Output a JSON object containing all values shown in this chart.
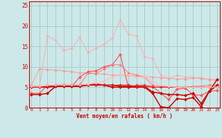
{
  "bg_color": "#cce8e8",
  "grid_color": "#aacccc",
  "xlabel": "Vent moyen/en rafales ( km/h )",
  "xlabel_color": "#cc0000",
  "tick_color": "#cc0000",
  "x": [
    0,
    1,
    2,
    3,
    4,
    5,
    6,
    7,
    8,
    9,
    10,
    11,
    12,
    13,
    14,
    15,
    16,
    17,
    18,
    19,
    20,
    21,
    22,
    23
  ],
  "ylim": [
    0,
    26
  ],
  "yticks": [
    0,
    5,
    10,
    15,
    20,
    25
  ],
  "xlim": [
    -0.3,
    23.3
  ],
  "series": [
    {
      "color": "#ffaaaa",
      "lw": 0.7,
      "marker": "D",
      "ms": 1.8,
      "y": [
        5.3,
        5.2,
        17.5,
        16.5,
        14.0,
        14.5,
        17.2,
        13.5,
        14.5,
        15.5,
        17.0,
        21.5,
        18.0,
        17.5,
        12.5,
        12.0,
        8.0,
        7.0,
        8.0,
        7.5,
        7.5,
        7.0,
        7.0,
        6.8
      ]
    },
    {
      "color": "#ff9999",
      "lw": 0.7,
      "marker": "D",
      "ms": 1.8,
      "y": [
        5.5,
        9.5,
        9.3,
        9.2,
        9.0,
        8.8,
        8.5,
        8.5,
        8.3,
        8.2,
        8.0,
        8.0,
        7.8,
        7.8,
        7.5,
        7.5,
        7.3,
        7.2,
        7.0,
        7.0,
        7.2,
        7.3,
        6.8,
        6.7
      ]
    },
    {
      "color": "#ff5555",
      "lw": 0.9,
      "marker": "D",
      "ms": 2.2,
      "y": [
        3.5,
        3.5,
        5.5,
        5.3,
        5.2,
        5.2,
        7.5,
        8.8,
        9.0,
        10.0,
        10.5,
        13.0,
        5.0,
        5.5,
        5.5,
        5.2,
        3.5,
        2.0,
        4.5,
        4.8,
        3.2,
        3.0,
        4.0,
        4.2
      ]
    },
    {
      "color": "#ff7777",
      "lw": 0.7,
      "marker": "D",
      "ms": 1.8,
      "y": [
        5.2,
        5.2,
        5.2,
        5.3,
        5.3,
        5.3,
        5.5,
        8.5,
        8.3,
        9.5,
        10.5,
        10.5,
        8.5,
        8.0,
        7.5,
        5.5,
        5.2,
        5.0,
        5.0,
        5.0,
        5.2,
        5.3,
        5.5,
        5.5
      ]
    },
    {
      "color": "#cc0000",
      "lw": 1.1,
      "marker": "D",
      "ms": 2.2,
      "y": [
        5.0,
        5.0,
        5.0,
        5.2,
        5.2,
        5.2,
        5.2,
        5.5,
        5.5,
        5.5,
        5.5,
        5.2,
        5.2,
        5.2,
        5.2,
        3.8,
        3.5,
        3.2,
        3.2,
        3.0,
        3.5,
        1.0,
        4.0,
        7.0
      ]
    },
    {
      "color": "#cc0000",
      "lw": 1.1,
      "marker": "D",
      "ms": 2.2,
      "y": [
        3.2,
        3.2,
        3.5,
        5.2,
        5.5,
        5.2,
        5.5,
        5.5,
        5.8,
        5.5,
        5.0,
        5.0,
        5.0,
        5.0,
        5.0,
        3.5,
        0.2,
        0.0,
        2.2,
        2.0,
        2.5,
        0.2,
        4.0,
        5.5
      ]
    },
    {
      "color": "#dd2222",
      "lw": 0.9,
      "marker": "D",
      "ms": 2.0,
      "y": [
        5.0,
        5.0,
        5.2,
        5.5,
        5.5,
        5.5,
        5.5,
        5.5,
        5.5,
        5.5,
        5.5,
        5.5,
        5.5,
        5.2,
        5.2,
        5.0,
        5.0,
        5.0,
        5.0,
        5.0,
        5.0,
        5.0,
        5.0,
        5.0
      ]
    },
    {
      "color": "#ffbbbb",
      "lw": 0.7,
      "marker": "D",
      "ms": 1.8,
      "y": [
        5.2,
        5.2,
        5.5,
        5.5,
        5.5,
        5.5,
        5.5,
        5.8,
        6.0,
        6.5,
        7.5,
        8.0,
        8.0,
        7.5,
        7.5,
        6.5,
        5.5,
        5.2,
        5.0,
        5.0,
        5.0,
        5.0,
        5.0,
        5.0
      ]
    }
  ],
  "arrow_symbols": [
    "\\",
    "↑",
    "\\",
    "↗",
    "↑",
    "↗",
    "↑",
    "↗",
    "↑",
    "↗",
    "↑",
    "↗",
    "↑",
    "↖",
    "↖",
    "←",
    "←",
    "↙",
    "↓",
    "↗",
    "↖",
    "←",
    "↖",
    "↑"
  ]
}
